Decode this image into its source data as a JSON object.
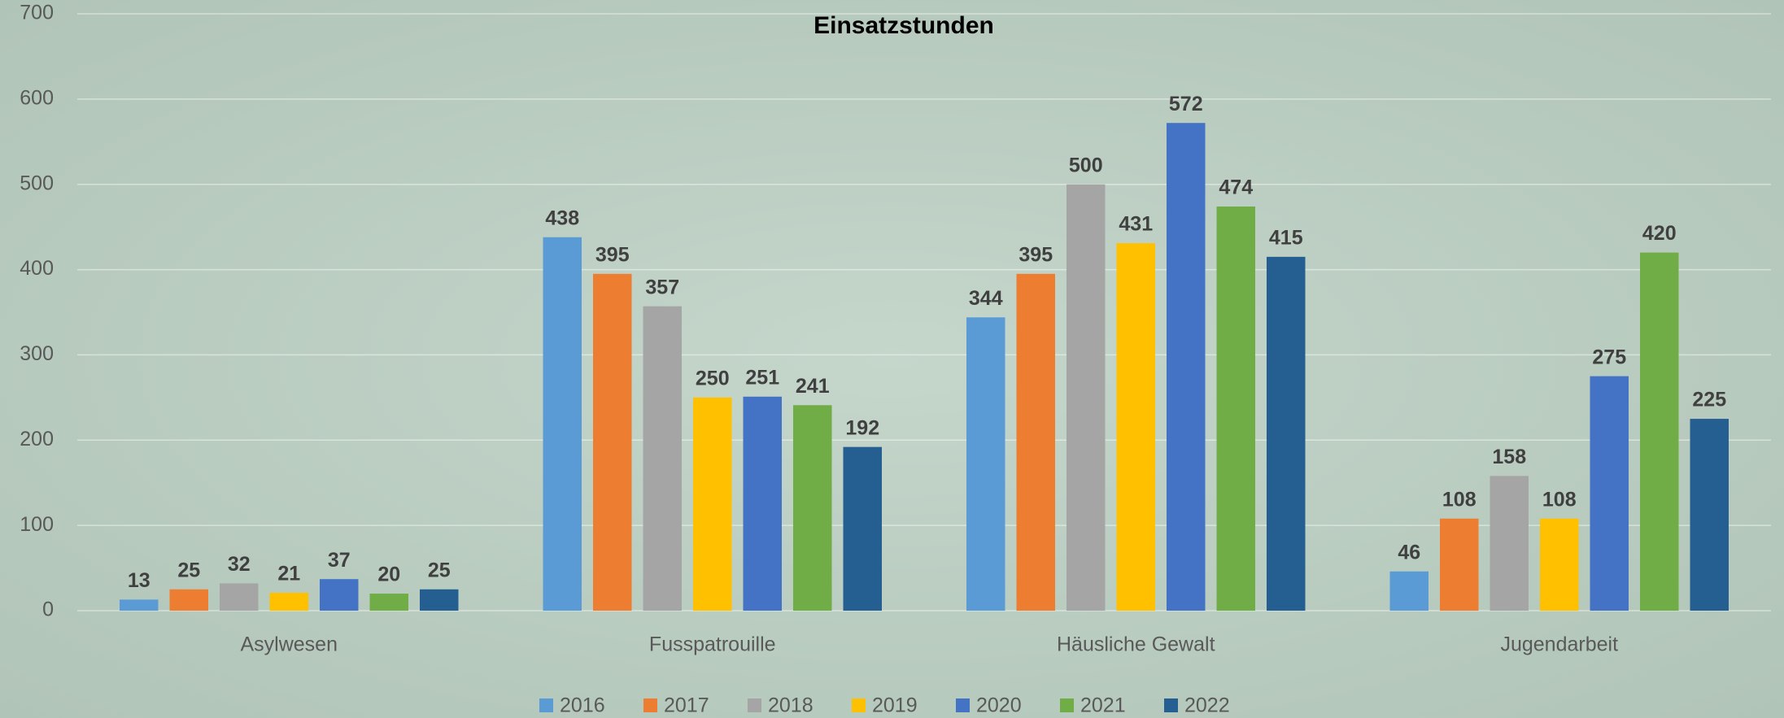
{
  "chart_data": {
    "type": "bar",
    "title": "Einsatzstunden",
    "categories": [
      "Asylwesen",
      "Fusspatrouille",
      "Häusliche Gewalt",
      "Jugendarbeit"
    ],
    "series": [
      {
        "name": "2016",
        "color": "#5b9bd5",
        "values": [
          13,
          438,
          344,
          46
        ]
      },
      {
        "name": "2017",
        "color": "#ed7d31",
        "values": [
          25,
          395,
          395,
          108
        ]
      },
      {
        "name": "2018",
        "color": "#a5a5a5",
        "values": [
          32,
          357,
          500,
          158
        ]
      },
      {
        "name": "2019",
        "color": "#ffc000",
        "values": [
          21,
          250,
          431,
          108
        ]
      },
      {
        "name": "2020",
        "color": "#4472c4",
        "values": [
          37,
          251,
          572,
          275
        ]
      },
      {
        "name": "2021",
        "color": "#70ad47",
        "values": [
          20,
          241,
          474,
          420
        ]
      },
      {
        "name": "2022",
        "color": "#255e91",
        "values": [
          25,
          192,
          415,
          225
        ]
      }
    ],
    "ylim": [
      0,
      700
    ],
    "yticks": [
      0,
      100,
      200,
      300,
      400,
      500,
      600,
      700
    ],
    "grid": true,
    "legend": "bottom"
  }
}
